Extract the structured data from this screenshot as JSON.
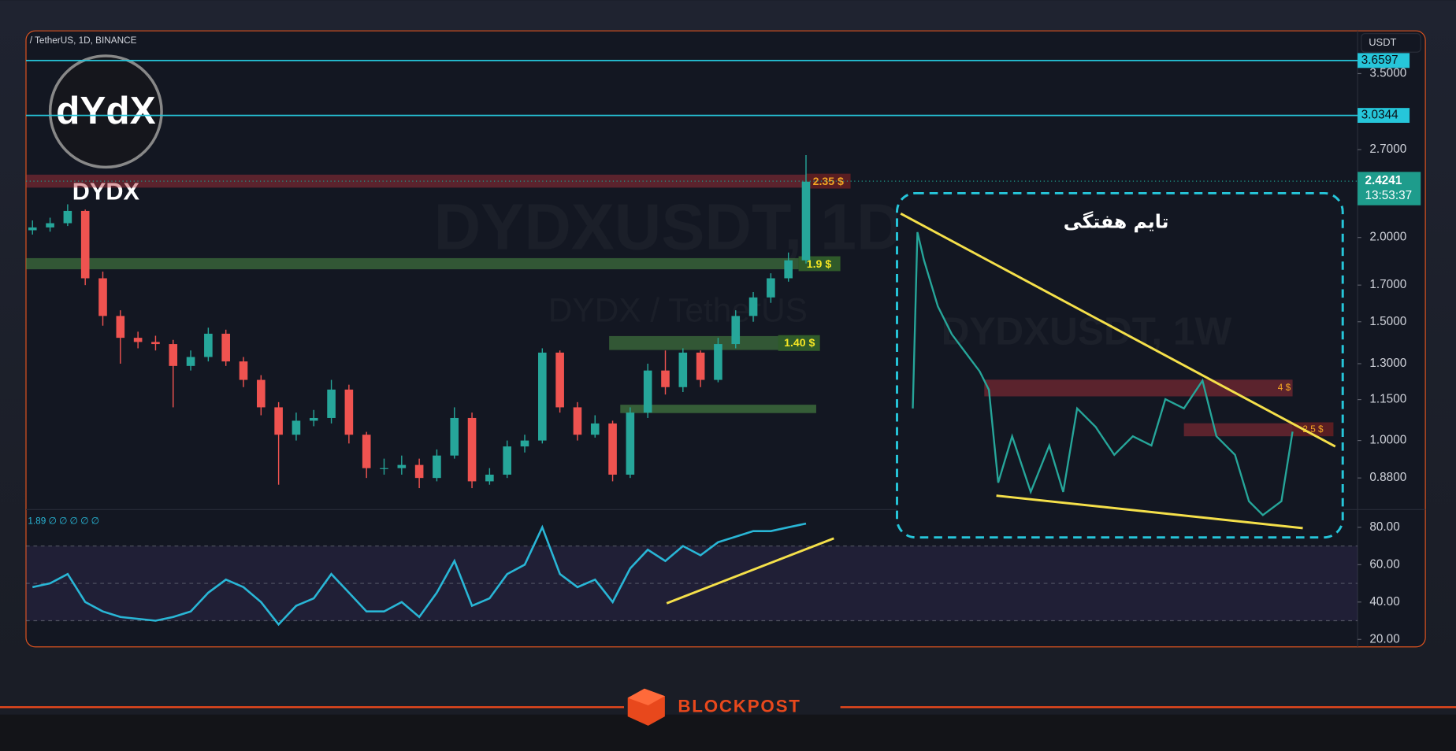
{
  "header": {
    "symbol": "/ TetherUS, 1D, BINANCE",
    "currency": "USDT",
    "logo": "dYdX",
    "coin": "DYDX",
    "watermark": "DYDXUSDT, 1D",
    "watermark_sub": "DYDX / TetherUS"
  },
  "annotations": {
    "zone_1": "2.35 $",
    "zone_2": "1.9 $",
    "zone_3": "1.40 $"
  },
  "inset": {
    "title": "تایم هفتگی",
    "watermark": "DYDXUSDT, 1W",
    "zone_1": "4 $",
    "zone_2": "2.5 $"
  },
  "footer": {
    "brand": "BLOCKPOST"
  },
  "chart_data": [
    {
      "type": "candlestick",
      "log_scale": true,
      "grid": false,
      "up_color": "#26a69a",
      "down_color": "#ef5350",
      "open": [
        2.05,
        2.07,
        2.1,
        2.19,
        1.74,
        1.53,
        1.42,
        1.4,
        1.39,
        1.29,
        1.33,
        1.44,
        1.31,
        1.23,
        1.12,
        1.02,
        1.07,
        1.08,
        1.19,
        1.02,
        0.91,
        0.91,
        0.92,
        0.88,
        0.95,
        1.08,
        0.87,
        0.89,
        0.98,
        1.0,
        1.35,
        1.12,
        1.02,
        1.06,
        0.89,
        1.1,
        1.27,
        1.2,
        1.35,
        1.23,
        1.39,
        1.53,
        1.63,
        1.74,
        1.85
      ],
      "high": [
        2.12,
        2.14,
        2.24,
        2.2,
        1.78,
        1.56,
        1.45,
        1.43,
        1.41,
        1.36,
        1.47,
        1.46,
        1.33,
        1.25,
        1.14,
        1.1,
        1.11,
        1.23,
        1.21,
        1.03,
        0.94,
        0.95,
        0.94,
        0.97,
        1.12,
        1.1,
        0.91,
        1.0,
        1.02,
        1.37,
        1.36,
        1.14,
        1.09,
        1.07,
        1.12,
        1.3,
        1.36,
        1.37,
        1.36,
        1.42,
        1.56,
        1.66,
        1.77,
        1.9,
        2.65
      ],
      "low": [
        2.02,
        2.04,
        2.08,
        1.7,
        1.48,
        1.3,
        1.37,
        1.36,
        1.12,
        1.27,
        1.31,
        1.29,
        1.2,
        1.09,
        0.86,
        1.0,
        1.05,
        1.06,
        0.99,
        0.88,
        0.89,
        0.89,
        0.85,
        0.87,
        0.94,
        0.85,
        0.86,
        0.88,
        0.96,
        0.99,
        1.1,
        1.0,
        1.01,
        0.87,
        0.88,
        1.08,
        1.17,
        1.18,
        1.2,
        1.22,
        1.37,
        1.5,
        1.6,
        1.72,
        1.83
      ],
      "close": [
        2.07,
        2.1,
        2.19,
        1.74,
        1.53,
        1.42,
        1.4,
        1.39,
        1.29,
        1.33,
        1.44,
        1.31,
        1.23,
        1.12,
        1.02,
        1.07,
        1.08,
        1.19,
        1.02,
        0.91,
        0.91,
        0.92,
        0.88,
        0.95,
        1.08,
        0.87,
        0.89,
        0.98,
        1.0,
        1.35,
        1.12,
        1.02,
        1.06,
        0.89,
        1.1,
        1.27,
        1.2,
        1.35,
        1.23,
        1.39,
        1.53,
        1.63,
        1.74,
        1.85,
        2.42
      ],
      "ylim": [
        0.79,
        4.05
      ],
      "yticks": [
        {
          "value": 0.88,
          "label": "0.8800"
        },
        {
          "value": 1,
          "label": "1.0000"
        },
        {
          "value": 1.15,
          "label": "1.1500"
        },
        {
          "value": 1.3,
          "label": "1.3000"
        },
        {
          "value": 1.5,
          "label": "1.5000"
        },
        {
          "value": 1.7,
          "label": "1.7000"
        },
        {
          "value": 2,
          "label": "2.0000"
        },
        {
          "value": 2.7,
          "label": "2.7000"
        },
        {
          "value": 3.5,
          "label": "3.5000"
        }
      ],
      "levels": [
        {
          "value": 3.6597
        },
        {
          "value": 3.0344
        }
      ],
      "level_color": "#26c6da",
      "last_price": 2.4241,
      "countdown": "13:53:37",
      "last_color": "#1e9c8c"
    },
    {
      "type": "line",
      "legend_text": "1.89  ∅ ∅ ∅ ∅ ∅",
      "color": "#29b6d6",
      "values": [
        48,
        50,
        55,
        40,
        35,
        32,
        31,
        30,
        32,
        35,
        45,
        52,
        48,
        40,
        28,
        38,
        42,
        55,
        45,
        35,
        35,
        40,
        32,
        45,
        62,
        38,
        42,
        55,
        60,
        80,
        55,
        48,
        52,
        40,
        58,
        68,
        62,
        70,
        65,
        72,
        75,
        78,
        78,
        80,
        82
      ],
      "ylim": [
        17,
        89
      ],
      "yticks": [
        {
          "value": 20,
          "label": "20.00"
        },
        {
          "value": 40,
          "label": "40.00"
        },
        {
          "value": 60,
          "label": "60.00"
        },
        {
          "value": 80,
          "label": "80.00"
        }
      ],
      "band": [
        30,
        70
      ],
      "midline": 50
    }
  ]
}
